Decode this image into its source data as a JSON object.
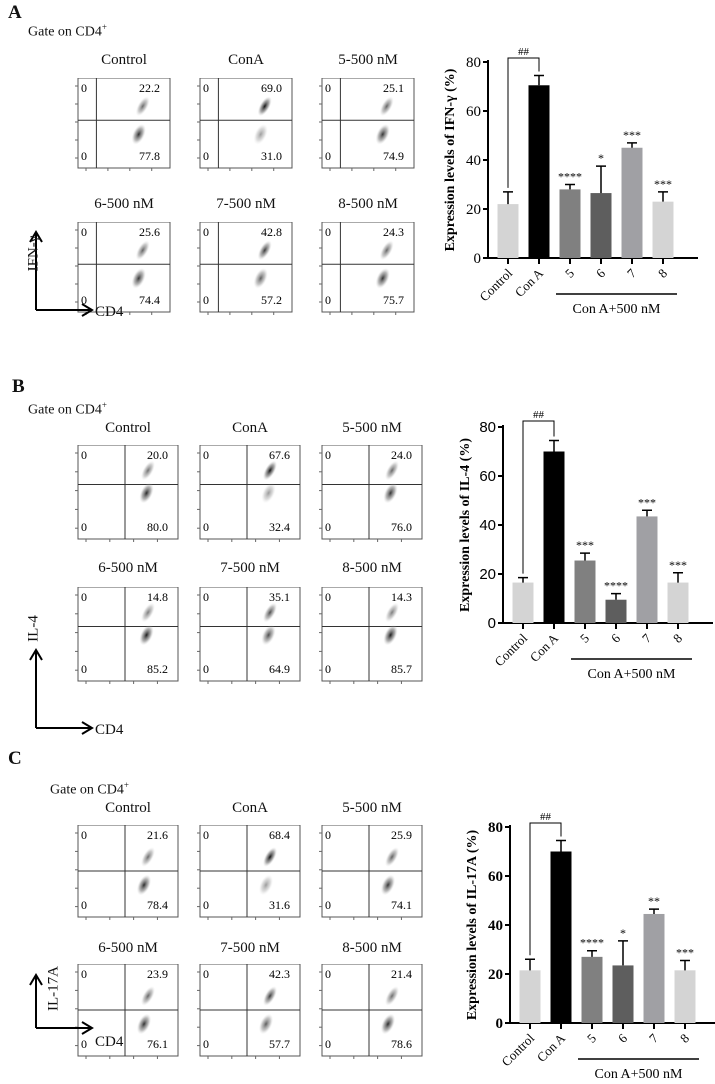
{
  "panels": [
    {
      "letter": "A",
      "gate": "Gate on CD4",
      "gate_sup": "+",
      "y_axis": "IFN-γ",
      "x_axis": "CD4",
      "plots": [
        {
          "title": "Control",
          "ul": "0",
          "ur": "22.2",
          "ll": "0",
          "lr": "77.8"
        },
        {
          "title": "ConA",
          "ul": "0",
          "ur": "69.0",
          "ll": "0",
          "lr": "31.0"
        },
        {
          "title": "5-500 nM",
          "ul": "0",
          "ur": "25.1",
          "ll": "0",
          "lr": "74.9"
        },
        {
          "title": "6-500 nM",
          "ul": "0",
          "ur": "25.6",
          "ll": "0",
          "lr": "74.4"
        },
        {
          "title": "7-500 nM",
          "ul": "0",
          "ur": "42.8",
          "ll": "0",
          "lr": "57.2"
        },
        {
          "title": "8-500 nM",
          "ul": "0",
          "ur": "24.3",
          "ll": "0",
          "lr": "75.7"
        }
      ]
    },
    {
      "letter": "B",
      "gate": "Gate on CD4",
      "gate_sup": "+",
      "y_axis": "IL-4",
      "x_axis": "CD4",
      "plots": [
        {
          "title": "Control",
          "ul": "0",
          "ur": "20.0",
          "ll": "0",
          "lr": "80.0"
        },
        {
          "title": "ConA",
          "ul": "0",
          "ur": "67.6",
          "ll": "0",
          "lr": "32.4"
        },
        {
          "title": "5-500 nM",
          "ul": "0",
          "ur": "24.0",
          "ll": "0",
          "lr": "76.0"
        },
        {
          "title": "6-500 nM",
          "ul": "0",
          "ur": "14.8",
          "ll": "0",
          "lr": "85.2"
        },
        {
          "title": "7-500 nM",
          "ul": "0",
          "ur": "35.1",
          "ll": "0",
          "lr": "64.9"
        },
        {
          "title": "8-500 nM",
          "ul": "0",
          "ur": "14.3",
          "ll": "0",
          "lr": "85.7"
        }
      ]
    },
    {
      "letter": "C",
      "gate": "Gate on CD4",
      "gate_sup": "+",
      "y_axis": "IL-17A",
      "x_axis": "CD4",
      "plots": [
        {
          "title": "Control",
          "ul": "0",
          "ur": "21.6",
          "ll": "0",
          "lr": "78.4"
        },
        {
          "title": "ConA",
          "ul": "0",
          "ur": "68.4",
          "ll": "0",
          "lr": "31.6"
        },
        {
          "title": "5-500 nM",
          "ul": "0",
          "ur": "25.9",
          "ll": "0",
          "lr": "74.1"
        },
        {
          "title": "6-500 nM",
          "ul": "0",
          "ur": "23.9",
          "ll": "0",
          "lr": "76.1"
        },
        {
          "title": "7-500 nM",
          "ul": "0",
          "ur": "42.3",
          "ll": "0",
          "lr": "57.7"
        },
        {
          "title": "8-500 nM",
          "ul": "0",
          "ur": "21.4",
          "ll": "0",
          "lr": "78.6"
        }
      ]
    }
  ],
  "chart_data": [
    {
      "type": "bar",
      "ylabel": "Expression levels of IFN-γ (%)",
      "ylim": [
        0,
        80
      ],
      "yticks": [
        "0",
        "20",
        "40",
        "60",
        "80"
      ],
      "categories": [
        "Control",
        "Con A",
        "5",
        "6",
        "7",
        "8"
      ],
      "group_label": "Con A+500 nM",
      "values": [
        22,
        70.5,
        28,
        26.5,
        45,
        23
      ],
      "error": [
        5,
        4,
        2,
        11,
        2,
        4
      ],
      "significance": [
        "",
        "",
        "****",
        "*",
        "***",
        "***"
      ],
      "comparison_label": "##",
      "colors": [
        "#d4d4d4",
        "#000000",
        "#808080",
        "#5e5e5e",
        "#a0a0a4",
        "#d4d4d4"
      ]
    },
    {
      "type": "bar",
      "ylabel": "Expression levels of IL-4 (%)",
      "ylim": [
        0,
        80
      ],
      "yticks": [
        "0",
        "20",
        "40",
        "60",
        "80"
      ],
      "categories": [
        "Control",
        "Con A",
        "5",
        "6",
        "7",
        "8"
      ],
      "group_label": "Con A+500 nM",
      "values": [
        16.5,
        70,
        25.5,
        9.5,
        43.5,
        16.5
      ],
      "error": [
        2,
        4.5,
        3,
        2.5,
        2.5,
        4
      ],
      "significance": [
        "",
        "",
        "***",
        "****",
        "***",
        "***"
      ],
      "comparison_label": "##",
      "colors": [
        "#d4d4d4",
        "#000000",
        "#808080",
        "#5e5e5e",
        "#a0a0a4",
        "#d4d4d4"
      ]
    },
    {
      "type": "bar",
      "ylabel": "Expression levels of IL-17A (%)",
      "ylim": [
        0,
        80
      ],
      "yticks": [
        "0",
        "20",
        "40",
        "60",
        "80"
      ],
      "categories": [
        "Control",
        "Con A",
        "5",
        "6",
        "7",
        "8"
      ],
      "group_label": "Con A+500 nM",
      "values": [
        21.5,
        70,
        27,
        23.5,
        44.5,
        21.5
      ],
      "error": [
        4.5,
        4.5,
        2.5,
        10,
        2,
        4
      ],
      "significance": [
        "",
        "",
        "****",
        "*",
        "**",
        "***"
      ],
      "comparison_label": "##",
      "colors": [
        "#d4d4d4",
        "#000000",
        "#808080",
        "#5e5e5e",
        "#a0a0a4",
        "#d4d4d4"
      ]
    }
  ]
}
